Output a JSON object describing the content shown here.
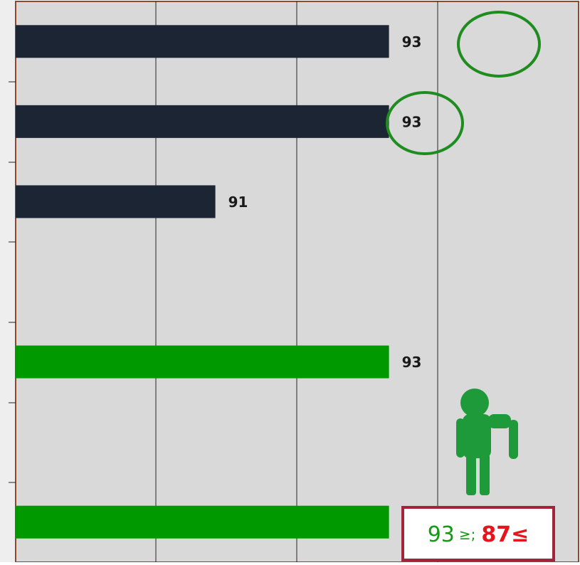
{
  "chart_data": {
    "type": "barh",
    "categories": [
      null,
      null,
      null,
      null,
      null,
      null,
      null
    ],
    "values": [
      93,
      93,
      91,
      null,
      93,
      null,
      93
    ],
    "colors": [
      "#1c2533",
      "#1c2533",
      "#1c2533",
      null,
      "#009900",
      null,
      "#009900"
    ],
    "xlim": [
      88.7,
      95.2
    ],
    "annotation": [
      "93",
      "≥;",
      "87≤"
    ]
  }
}
